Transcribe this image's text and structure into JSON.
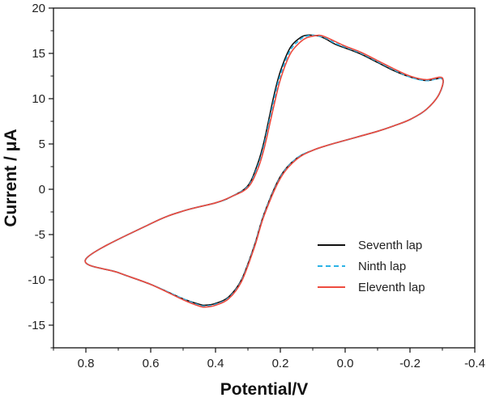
{
  "chart_data": {
    "type": "line",
    "title": "",
    "xlabel": "Potential/V",
    "ylabel": "Current / μA",
    "xlim": [
      0.9,
      -0.4
    ],
    "ylim": [
      -17.5,
      20
    ],
    "x_ticks": [
      0.8,
      0.6,
      0.4,
      0.2,
      0.0,
      -0.2,
      -0.4
    ],
    "x_tick_labels": [
      "0.8",
      "0.6",
      "0.4",
      "0.2",
      "0.0",
      "-0.2",
      "-0.4"
    ],
    "y_ticks": [
      20,
      15,
      10,
      5,
      0,
      -5,
      -10,
      -15
    ],
    "y_tick_labels": [
      "20",
      "15",
      "10",
      "5",
      "0",
      "-5",
      "-10",
      "-15"
    ],
    "grid": false,
    "legend_position": "bottom-right",
    "series": [
      {
        "name": "Seventh lap",
        "color": "#111111",
        "style": "solid",
        "x": [
          0.8,
          0.6,
          0.5,
          0.4,
          0.35,
          0.3,
          0.27,
          0.25,
          0.22,
          0.2,
          0.17,
          0.14,
          0.12,
          0.1,
          0.08,
          0.06,
          0.03,
          0.0,
          -0.05,
          -0.1,
          -0.15,
          -0.2,
          -0.25,
          -0.3,
          -0.29,
          -0.25,
          -0.2,
          -0.15,
          -0.1,
          -0.05,
          0.0,
          0.05,
          0.1,
          0.15,
          0.2,
          0.25,
          0.28,
          0.32,
          0.36,
          0.4,
          0.43,
          0.45,
          0.5,
          0.6,
          0.7,
          0.8
        ],
        "y": [
          -7.7,
          -3.8,
          -2.4,
          -1.5,
          -0.8,
          0.4,
          2.8,
          5.3,
          10.3,
          13.0,
          15.6,
          16.7,
          17.0,
          17.0,
          16.9,
          16.6,
          16.0,
          15.6,
          14.9,
          14.0,
          13.1,
          12.4,
          12.0,
          12.2,
          10.5,
          8.8,
          7.7,
          7.0,
          6.4,
          5.9,
          5.4,
          4.9,
          4.3,
          3.4,
          1.4,
          -2.7,
          -6.2,
          -10.0,
          -11.9,
          -12.6,
          -12.8,
          -12.7,
          -12.1,
          -10.5,
          -9.2,
          -7.7
        ]
      },
      {
        "name": "Ninth lap",
        "color": "#2bb3e6",
        "style": "dashed",
        "x": [
          0.8,
          0.6,
          0.5,
          0.4,
          0.35,
          0.3,
          0.27,
          0.25,
          0.22,
          0.2,
          0.17,
          0.14,
          0.12,
          0.1,
          0.08,
          0.06,
          0.03,
          0.0,
          -0.05,
          -0.1,
          -0.15,
          -0.2,
          -0.25,
          -0.3,
          -0.29,
          -0.25,
          -0.2,
          -0.15,
          -0.1,
          -0.05,
          0.0,
          0.05,
          0.1,
          0.15,
          0.2,
          0.25,
          0.28,
          0.32,
          0.36,
          0.4,
          0.43,
          0.45,
          0.5,
          0.6,
          0.7,
          0.8
        ],
        "y": [
          -7.7,
          -3.8,
          -2.4,
          -1.5,
          -0.8,
          0.3,
          2.5,
          4.9,
          9.8,
          12.6,
          15.3,
          16.5,
          16.9,
          17.0,
          16.9,
          16.7,
          16.1,
          15.7,
          15.0,
          14.1,
          13.2,
          12.4,
          12.0,
          12.2,
          10.5,
          8.8,
          7.7,
          7.0,
          6.4,
          5.9,
          5.4,
          4.9,
          4.3,
          3.4,
          1.3,
          -2.8,
          -6.3,
          -10.1,
          -12.0,
          -12.7,
          -12.9,
          -12.8,
          -12.1,
          -10.5,
          -9.2,
          -7.7
        ]
      },
      {
        "name": "Eleventh lap",
        "color": "#ee4b3f",
        "style": "solid",
        "x": [
          0.8,
          0.6,
          0.5,
          0.4,
          0.35,
          0.3,
          0.27,
          0.25,
          0.22,
          0.2,
          0.17,
          0.14,
          0.12,
          0.1,
          0.08,
          0.06,
          0.03,
          0.0,
          -0.05,
          -0.1,
          -0.15,
          -0.2,
          -0.25,
          -0.3,
          -0.29,
          -0.25,
          -0.2,
          -0.15,
          -0.1,
          -0.05,
          0.0,
          0.05,
          0.1,
          0.15,
          0.2,
          0.25,
          0.28,
          0.32,
          0.36,
          0.4,
          0.43,
          0.45,
          0.5,
          0.6,
          0.7,
          0.8
        ],
        "y": [
          -7.7,
          -3.8,
          -2.4,
          -1.5,
          -0.8,
          0.2,
          2.2,
          4.5,
          9.2,
          12.1,
          14.9,
          16.2,
          16.7,
          16.9,
          17.0,
          16.8,
          16.3,
          15.8,
          15.1,
          14.2,
          13.3,
          12.5,
          12.1,
          12.3,
          10.5,
          8.8,
          7.7,
          7.0,
          6.4,
          5.9,
          5.4,
          4.9,
          4.3,
          3.3,
          1.2,
          -2.9,
          -6.4,
          -10.2,
          -12.1,
          -12.8,
          -13.0,
          -12.9,
          -12.2,
          -10.5,
          -9.2,
          -7.7
        ]
      }
    ]
  }
}
